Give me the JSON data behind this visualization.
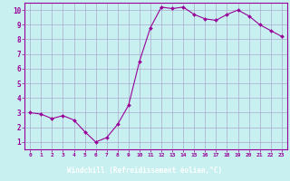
{
  "x": [
    0,
    1,
    2,
    3,
    4,
    5,
    6,
    7,
    8,
    9,
    10,
    11,
    12,
    13,
    14,
    15,
    16,
    17,
    18,
    19,
    20,
    21,
    22,
    23
  ],
  "y": [
    3.0,
    2.9,
    2.6,
    2.8,
    2.5,
    1.7,
    1.0,
    1.3,
    2.2,
    3.5,
    6.5,
    8.8,
    10.2,
    10.1,
    10.2,
    9.7,
    9.4,
    9.3,
    9.7,
    10.0,
    9.6,
    9.0,
    8.6,
    8.2
  ],
  "line_color": "#990099",
  "marker": "D",
  "marker_size": 2.0,
  "bg_color": "#c8f0f0",
  "grid_color": "#aaaacc",
  "xlabel": "Windchill (Refroidissement éolien,°C)",
  "xlabel_color": "#ffffff",
  "xlabel_bg": "#990099",
  "ylabel_ticks": [
    1,
    2,
    3,
    4,
    5,
    6,
    7,
    8,
    9,
    10
  ],
  "xlim": [
    -0.5,
    23.5
  ],
  "ylim": [
    0.5,
    10.5
  ],
  "tick_color": "#990099",
  "spine_color": "#990099"
}
